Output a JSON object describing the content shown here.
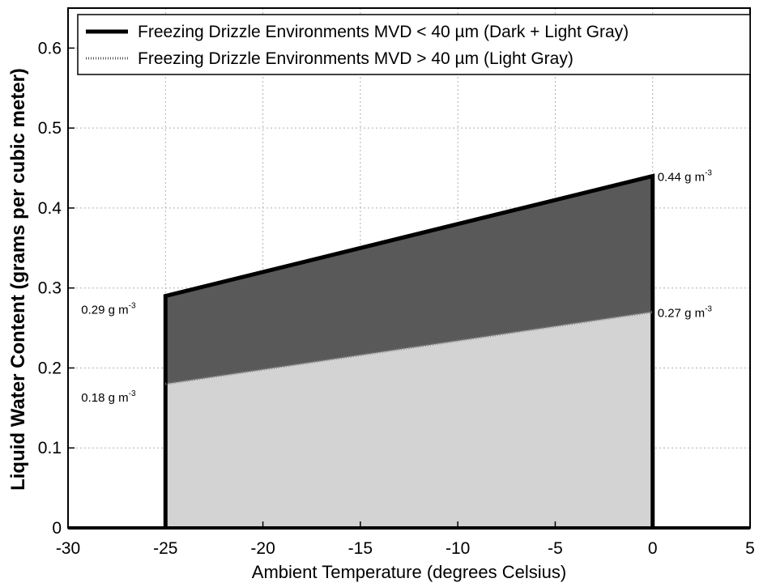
{
  "chart_data": {
    "type": "area",
    "xlabel": "Ambient Temperature (degrees Celsius)",
    "ylabel": "Liquid Water Content (grams per cubic meter)",
    "xlim": [
      -30,
      5
    ],
    "ylim": [
      0,
      0.65
    ],
    "x_ticks": [
      -30,
      -25,
      -20,
      -15,
      -10,
      -5,
      0,
      5
    ],
    "x_tick_labels": [
      "-30",
      "-25",
      "-20",
      "-15",
      "-10",
      "-5",
      "0",
      "5"
    ],
    "y_ticks": [
      0,
      0.1,
      0.2,
      0.3,
      0.4,
      0.5,
      0.6
    ],
    "y_tick_labels": [
      "0",
      "0.1",
      "0.2",
      "0.3",
      "0.4",
      "0.5",
      "0.6"
    ],
    "grid": true,
    "legend_position": "top",
    "series": [
      {
        "name": "Freezing Drizzle Environments MVD < 40 µm (Dark + Light Gray)",
        "line_style": "solid",
        "fill_color": "#595959",
        "x": [
          -25,
          0
        ],
        "y": [
          0.29,
          0.44
        ]
      },
      {
        "name": "Freezing Drizzle Environments MVD > 40 µm (Light Gray)",
        "line_style": "dotted",
        "fill_color": "#d3d3d3",
        "x": [
          -25,
          0
        ],
        "y": [
          0.18,
          0.27
        ]
      }
    ],
    "annotations": [
      {
        "text": "0.44 g m",
        "sup": "-3",
        "x": 0,
        "y": 0.44,
        "side": "right"
      },
      {
        "text": "0.27 g m",
        "sup": "-3",
        "x": 0,
        "y": 0.27,
        "side": "right"
      },
      {
        "text": "0.29 g m",
        "sup": "-3",
        "x": -25,
        "y": 0.29,
        "side": "left"
      },
      {
        "text": "0.18 g m",
        "sup": "-3",
        "x": -25,
        "y": 0.18,
        "side": "left"
      }
    ]
  }
}
